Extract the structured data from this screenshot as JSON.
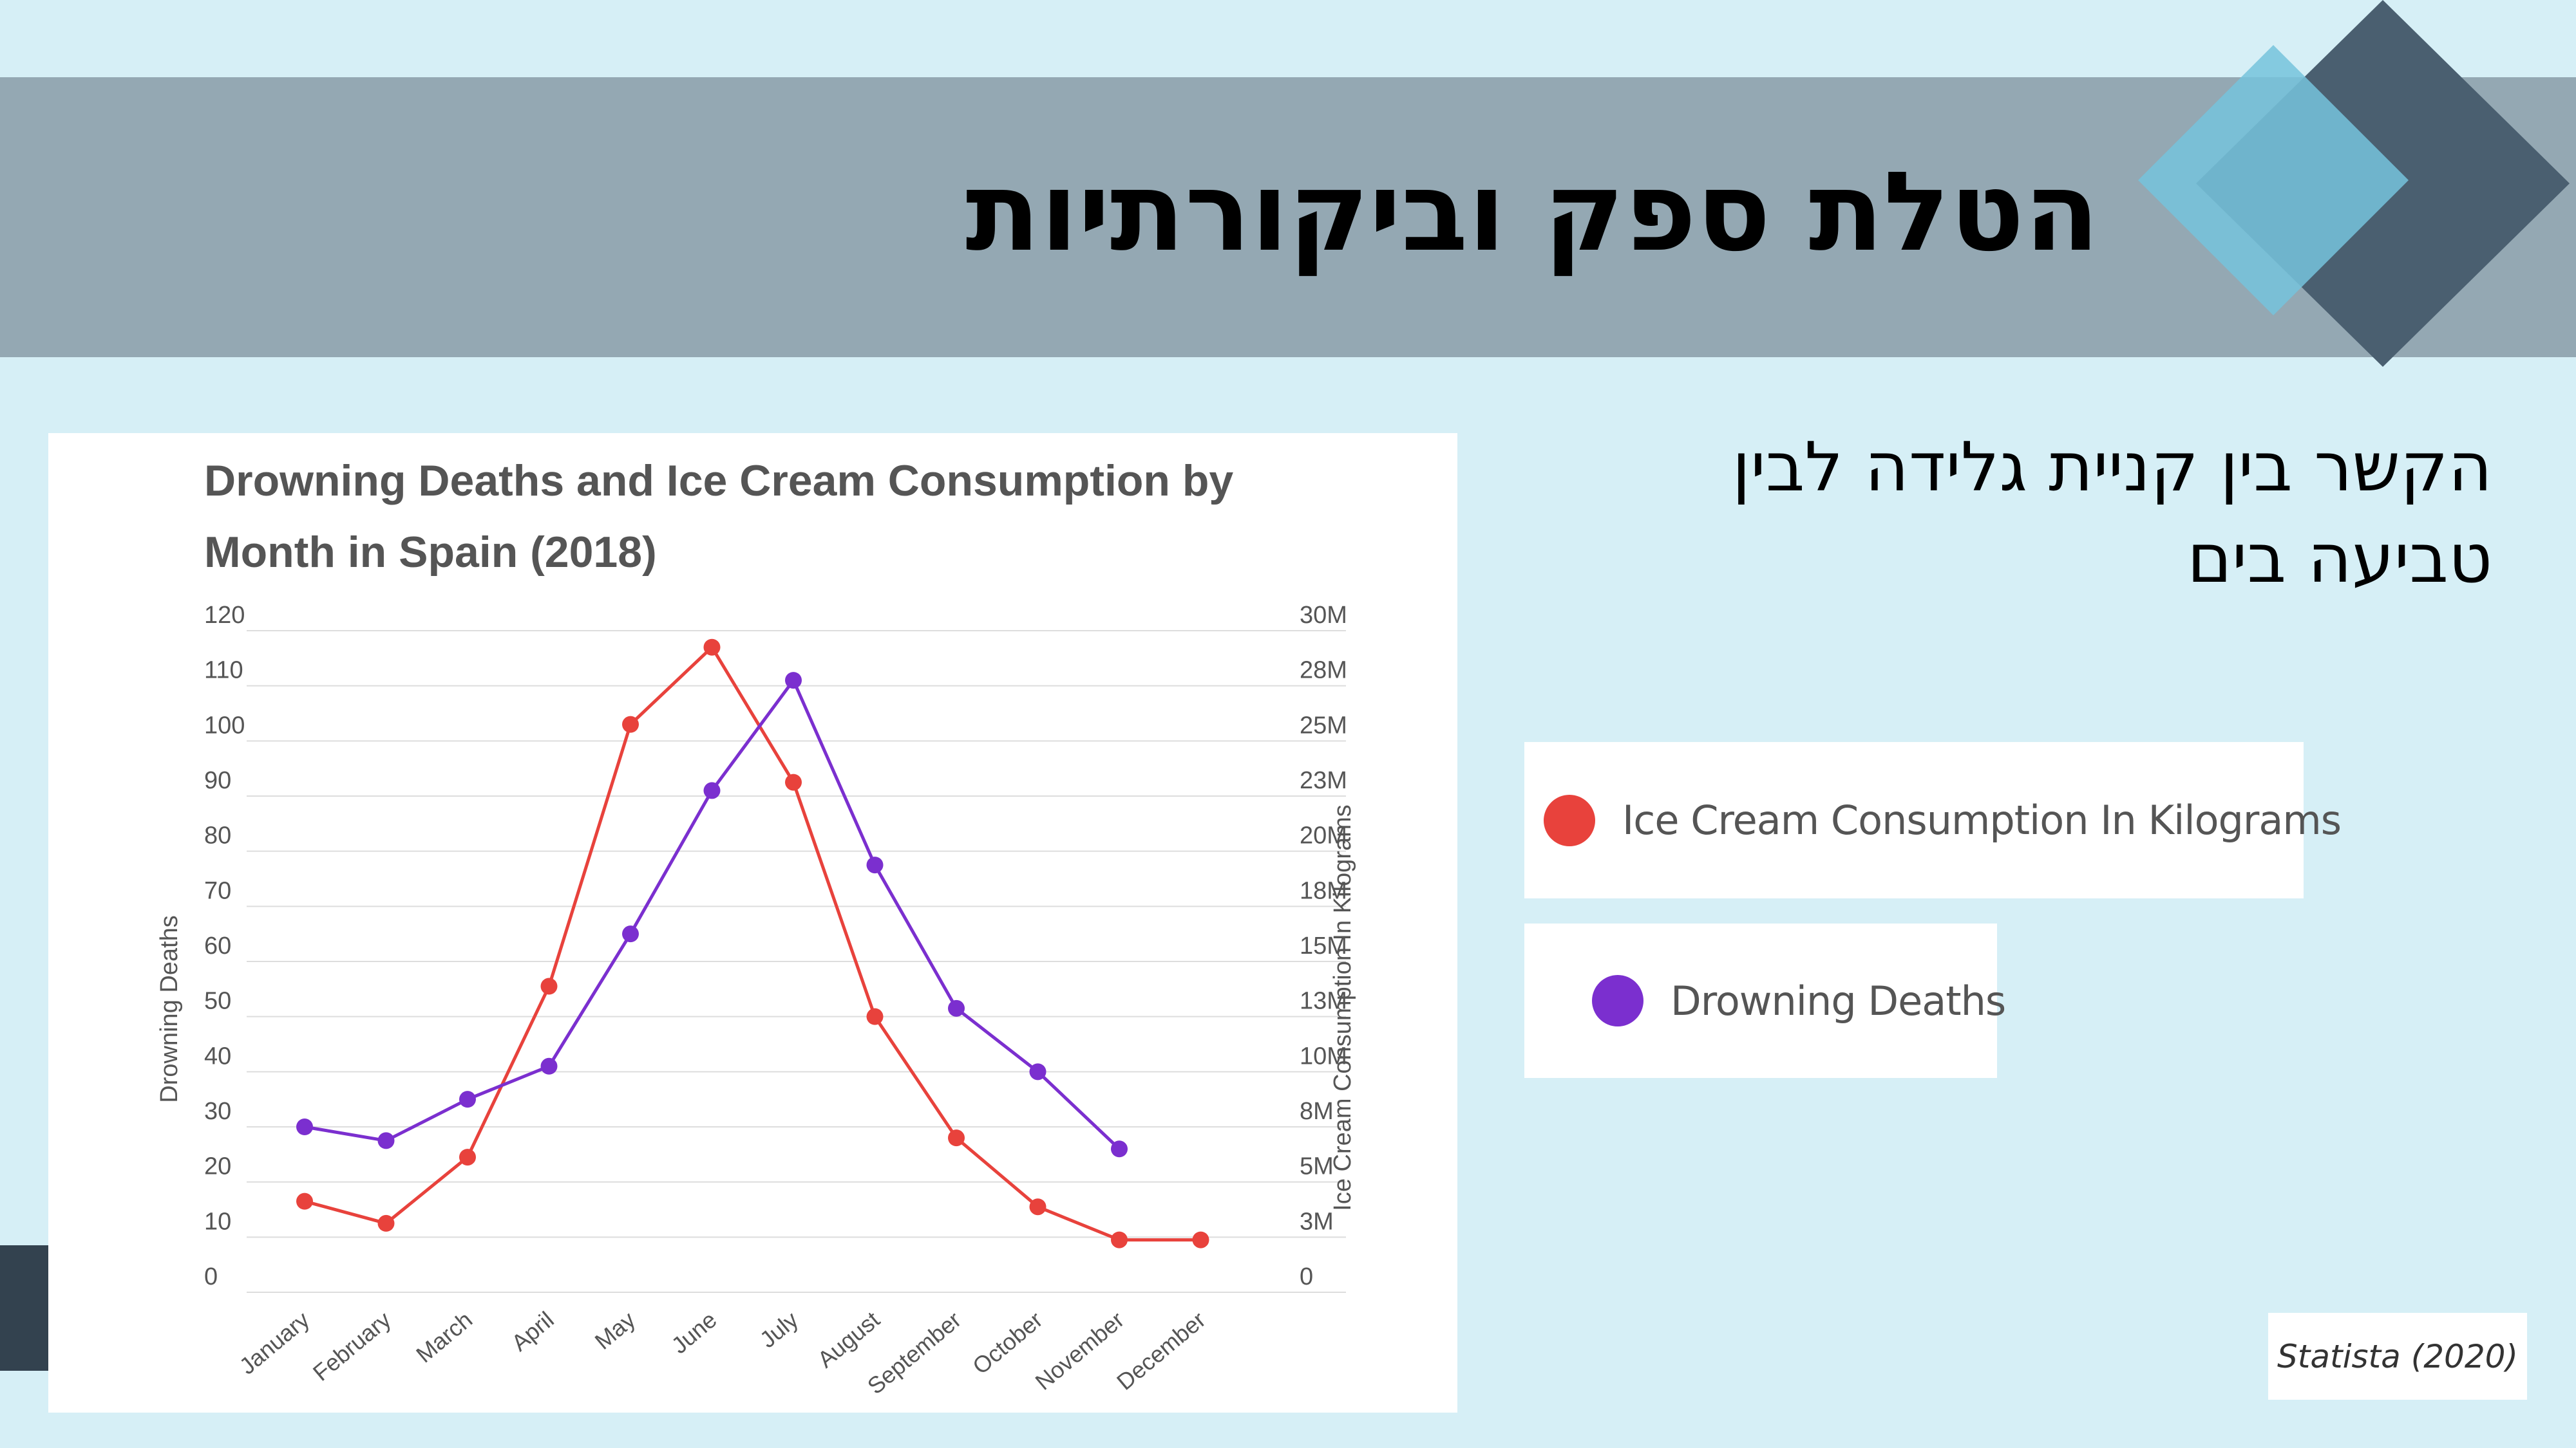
{
  "slide": {
    "title": "הטלת ספק וביקורתיות",
    "subtitle_line1": "הקשר בין קניית גלידה לבין",
    "subtitle_line2": "טביעה בים",
    "source": "Statista (2020)"
  },
  "colors": {
    "background": "#d6eff6",
    "banner": "#94a8b3",
    "ice_cream": "#e8423c",
    "drowning": "#7b2fcf",
    "diamond_light": "#75c3dc",
    "diamond_dark": "#4a5f70"
  },
  "legend": [
    {
      "label": "Ice Cream Consumption In Kilograms",
      "color": "#e8423c"
    },
    {
      "label": "Drowning Deaths",
      "color": "#7b2fcf"
    }
  ],
  "chart_data": {
    "type": "line",
    "title_line1": "Drowning Deaths and Ice Cream Consumption by",
    "title_line2": "Month in Spain (2018)",
    "ylabel": "Drowning Deaths",
    "y2label": "Ice Cream Consumption In Kilograms",
    "categories": [
      "January",
      "February",
      "March",
      "April",
      "May",
      "June",
      "July",
      "August",
      "September",
      "October",
      "November",
      "December"
    ],
    "ylim": [
      0,
      120
    ],
    "y_ticks": [
      "0",
      "10",
      "20",
      "30",
      "40",
      "50",
      "60",
      "70",
      "80",
      "90",
      "100",
      "110",
      "120"
    ],
    "y2_ticks": [
      "0",
      "3M",
      "5M",
      "8M",
      "10M",
      "13M",
      "15M",
      "18M",
      "20M",
      "23M",
      "25M",
      "28M",
      "30M"
    ],
    "grid": true,
    "series": [
      {
        "name": "Ice Cream Consumption In Kilograms",
        "axis": "right",
        "color": "#e8423c",
        "values": [
          16.5,
          12.5,
          24.5,
          55.5,
          103,
          117,
          92.5,
          50,
          28,
          15.5,
          9.5,
          9.5
        ]
      },
      {
        "name": "Drowning Deaths",
        "axis": "left",
        "color": "#7b2fcf",
        "values": [
          30,
          27.5,
          35,
          41,
          65,
          91,
          111,
          77.5,
          51.5,
          40,
          26,
          null
        ]
      }
    ]
  }
}
